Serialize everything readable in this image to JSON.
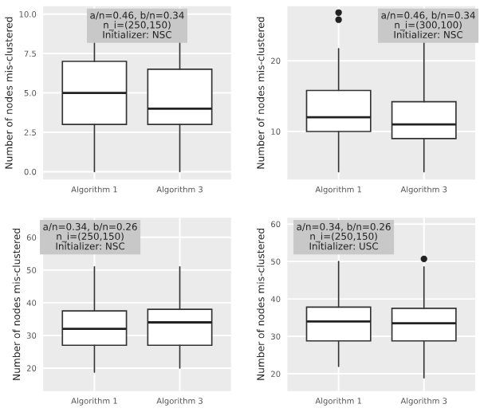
{
  "chart_data": [
    {
      "type": "box",
      "ylabel": "Number of nodes mis-clustered",
      "categories": [
        "Algorithm 1",
        "Algorithm 3"
      ],
      "ylim": [
        -0.5,
        10.5
      ],
      "yticks": [
        {
          "value": 0,
          "label": "0.0"
        },
        2.5,
        {
          "value": 5,
          "label": "5.0"
        },
        7.5,
        {
          "value": 10,
          "label": "10.0"
        }
      ],
      "grid": true,
      "annotations": [
        "a/n=0.46, b/n=0.34\nn_i=(250,150)\nInitializer: NSC"
      ],
      "boxes": [
        {
          "low": 0,
          "q1": 3,
          "median": 5,
          "q3": 7,
          "high": 10
        },
        {
          "low": 0,
          "q1": 3,
          "median": 4,
          "q3": 6.5,
          "high": 10
        }
      ]
    },
    {
      "type": "box",
      "ylabel": "Number of nodes mis-clustered",
      "categories": [
        "Algorithm 1",
        "Algorithm 3"
      ],
      "ylim": [
        3.2,
        27.7
      ],
      "yticks": [
        10,
        20
      ],
      "grid": true,
      "annotations": [
        "a/n=0.46, b/n=0.34\nn_i=(300,100)\nInitializer: NSC"
      ],
      "boxes": [
        {
          "low": 4.3,
          "q1": 10,
          "median": 12,
          "q3": 15.8,
          "high": 21.7,
          "outliers": [
            25.8,
            26.8
          ]
        },
        {
          "low": 4.3,
          "q1": 9,
          "median": 11,
          "q3": 14.2,
          "high": 25
        }
      ]
    },
    {
      "type": "box",
      "ylabel": "Number of nodes mis-clustered",
      "categories": [
        "Algorithm 1",
        "Algorithm 3"
      ],
      "ylim": [
        13,
        66
      ],
      "yticks": [
        20,
        30,
        40,
        50,
        60
      ],
      "grid": true,
      "annotations": [
        "a/n=0.34, b/n=0.26\nn_i=(250,150)\nInitializer: NSC"
      ],
      "boxes": [
        {
          "low": 18.8,
          "q1": 27,
          "median": 32,
          "q3": 37.5,
          "high": 51
        },
        {
          "low": 20,
          "q1": 27,
          "median": 34,
          "q3": 38,
          "high": 51
        }
      ]
    },
    {
      "type": "box",
      "ylabel": "Number of nodes mis-clustered",
      "categories": [
        "Algorithm 1",
        "Algorithm 3"
      ],
      "ylim": [
        15.4,
        61.7
      ],
      "yticks": [
        20,
        30,
        40,
        50,
        60
      ],
      "grid": true,
      "annotations": [
        "a/n=0.34, b/n=0.26\nn_i=(250,150)\nInitializer: USC"
      ],
      "boxes": [
        {
          "low": 22,
          "q1": 28.8,
          "median": 34,
          "q3": 37.8,
          "high": 50
        },
        {
          "low": 18.9,
          "q1": 28.8,
          "median": 33.5,
          "q3": 37.5,
          "high": 48.6,
          "outliers": [
            50.7
          ]
        }
      ]
    }
  ]
}
